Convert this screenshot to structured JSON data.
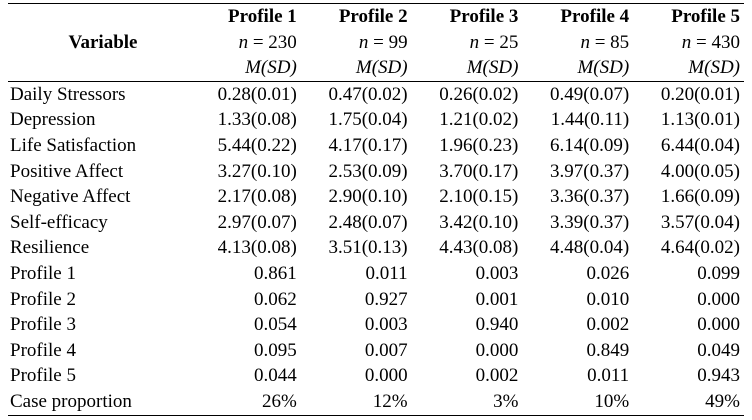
{
  "header": {
    "variable_label": "Variable",
    "profiles": [
      {
        "name": "Profile 1",
        "n_prefix": "n",
        "n_value": " = 230",
        "stat": "M(SD)"
      },
      {
        "name": "Profile 2",
        "n_prefix": "n",
        "n_value": " = 99",
        "stat": "M(SD)"
      },
      {
        "name": "Profile 3",
        "n_prefix": "n",
        "n_value": " = 25",
        "stat": "M(SD)"
      },
      {
        "name": "Profile 4",
        "n_prefix": "n",
        "n_value": " = 85",
        "stat": "M(SD)"
      },
      {
        "name": "Profile 5",
        "n_prefix": "n",
        "n_value": " = 430",
        "stat": "M(SD)"
      }
    ]
  },
  "rows": [
    {
      "label": "Daily Stressors",
      "values": [
        "0.28(0.01)",
        "0.47(0.02)",
        "0.26(0.02)",
        "0.49(0.07)",
        "0.20(0.01)"
      ]
    },
    {
      "label": "Depression",
      "values": [
        "1.33(0.08)",
        "1.75(0.04)",
        "1.21(0.02)",
        "1.44(0.11)",
        "1.13(0.01)"
      ]
    },
    {
      "label": "Life Satisfaction",
      "values": [
        "5.44(0.22)",
        "4.17(0.17)",
        "1.96(0.23)",
        "6.14(0.09)",
        "6.44(0.04)"
      ]
    },
    {
      "label": "Positive Affect",
      "values": [
        "3.27(0.10)",
        "2.53(0.09)",
        "3.70(0.17)",
        "3.97(0.37)",
        "4.00(0.05)"
      ]
    },
    {
      "label": "Negative Affect",
      "values": [
        "2.17(0.08)",
        "2.90(0.10)",
        "2.10(0.15)",
        "3.36(0.37)",
        "1.66(0.09)"
      ]
    },
    {
      "label": "Self-efficacy",
      "values": [
        "2.97(0.07)",
        "2.48(0.07)",
        "3.42(0.10)",
        "3.39(0.37)",
        "3.57(0.04)"
      ]
    },
    {
      "label": "Resilience",
      "values": [
        "4.13(0.08)",
        "3.51(0.13)",
        "4.43(0.08)",
        "4.48(0.04)",
        "4.64(0.02)"
      ]
    },
    {
      "label": "Profile 1",
      "values": [
        "0.861",
        "0.011",
        "0.003",
        "0.026",
        "0.099"
      ]
    },
    {
      "label": "Profile 2",
      "values": [
        "0.062",
        "0.927",
        "0.001",
        "0.010",
        "0.000"
      ]
    },
    {
      "label": "Profile 3",
      "values": [
        "0.054",
        "0.003",
        "0.940",
        "0.002",
        "0.000"
      ]
    },
    {
      "label": "Profile 4",
      "values": [
        "0.095",
        "0.007",
        "0.000",
        "0.849",
        "0.049"
      ]
    },
    {
      "label": "Profile 5",
      "values": [
        "0.044",
        "0.000",
        "0.002",
        "0.011",
        "0.943"
      ]
    },
    {
      "label": "Case proportion",
      "values": [
        "26%",
        "12%",
        "3%",
        "10%",
        "49%"
      ]
    }
  ]
}
